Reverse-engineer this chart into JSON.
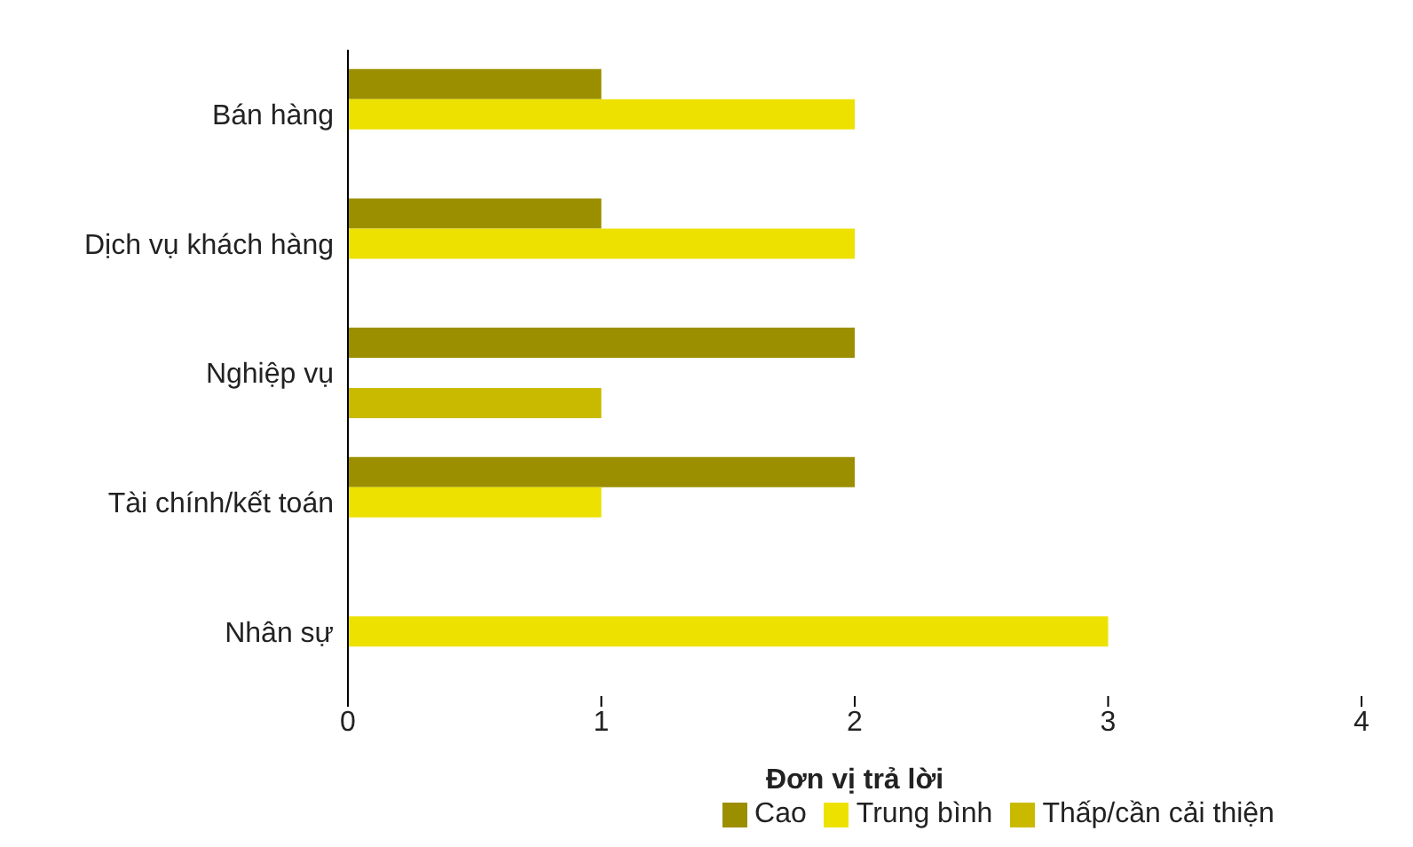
{
  "chart_data": {
    "type": "bar",
    "orientation": "horizontal",
    "xlabel": "Đơn vị trả lời",
    "categories": [
      "Bán hàng",
      "Dịch vụ khách hàng",
      "Nghiệp vụ",
      "Tài chính/kết toán",
      "Nhân sự"
    ],
    "series": [
      {
        "name": "Cao",
        "color": "#9b8f00",
        "values": [
          1,
          1,
          2,
          2,
          0
        ]
      },
      {
        "name": "Trung bình",
        "color": "#ede100",
        "values": [
          2,
          2,
          0,
          1,
          3
        ]
      },
      {
        "name": "Thấp/cần cải thiện",
        "color": "#c9ba00",
        "values": [
          0,
          0,
          1,
          0,
          0
        ]
      }
    ],
    "xlim": [
      0,
      4
    ],
    "xticks": [
      0,
      1,
      2,
      3,
      4
    ],
    "grid": false,
    "legend": "bottom"
  }
}
